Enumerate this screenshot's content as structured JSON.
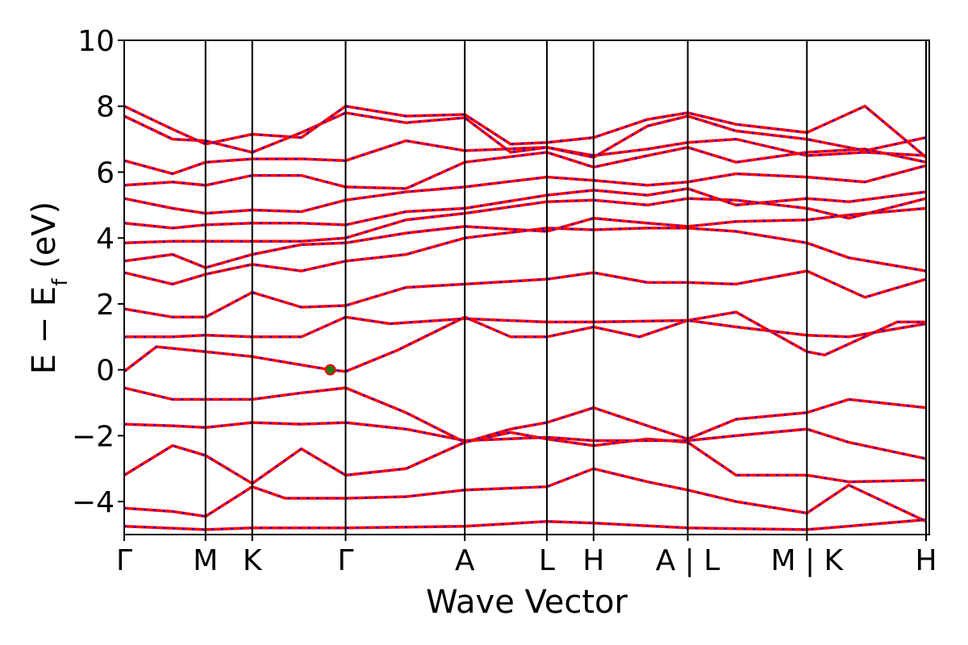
{
  "chart_data": {
    "type": "line",
    "xlabel": "Wave Vector",
    "ylabel": "E − E",
    "ylabel_sub": "f",
    "ylabel_unit": " (eV)",
    "ylim": [
      -5,
      10
    ],
    "yticks": [
      -4,
      -2,
      0,
      2,
      4,
      6,
      8,
      10
    ],
    "ytick_labels": [
      "−4",
      "−2",
      "0",
      "2",
      "4",
      "6",
      "8",
      "10"
    ],
    "x_range": [
      0,
      1000
    ],
    "kpoints": [
      {
        "label": "Γ",
        "x": 0
      },
      {
        "label": "M",
        "x": 101
      },
      {
        "label": "K",
        "x": 159
      },
      {
        "label": "Γ",
        "x": 275
      },
      {
        "label": "A",
        "x": 423
      },
      {
        "label": "L",
        "x": 525
      },
      {
        "label": "H",
        "x": 583
      },
      {
        "label": "A | L",
        "x": 700
      },
      {
        "label": "M | K",
        "x": 848
      },
      {
        "label": "H",
        "x": 996
      }
    ],
    "segment_breaks": [
      0,
      101,
      159,
      275,
      423,
      525,
      583,
      700,
      848,
      996
    ],
    "highlight_point": {
      "x": 256,
      "y": 0.0
    },
    "colors": {
      "band_line": "#ff0000",
      "band_dash": "#0000ff",
      "highlight": "#1a7f1a",
      "axis": "#000000"
    },
    "series": [
      {
        "values": [
          [
            0,
            -4.75
          ],
          [
            101,
            -4.85
          ],
          [
            159,
            -4.8
          ],
          [
            275,
            -4.8
          ],
          [
            423,
            -4.75
          ],
          [
            525,
            -4.6
          ],
          [
            583,
            -4.65
          ],
          [
            700,
            -4.8
          ],
          [
            848,
            -4.85
          ],
          [
            996,
            -4.55
          ]
        ]
      },
      {
        "values": [
          [
            0,
            -4.2
          ],
          [
            60,
            -4.3
          ],
          [
            101,
            -4.45
          ],
          [
            159,
            -3.55
          ],
          [
            200,
            -3.9
          ],
          [
            275,
            -3.9
          ],
          [
            350,
            -3.85
          ],
          [
            423,
            -3.65
          ],
          [
            525,
            -3.55
          ],
          [
            583,
            -3.0
          ],
          [
            650,
            -3.4
          ],
          [
            700,
            -3.65
          ],
          [
            760,
            -4.0
          ],
          [
            848,
            -4.35
          ],
          [
            900,
            -3.5
          ],
          [
            996,
            -4.6
          ]
        ]
      },
      {
        "values": [
          [
            0,
            -3.2
          ],
          [
            60,
            -2.3
          ],
          [
            101,
            -2.6
          ],
          [
            159,
            -3.45
          ],
          [
            220,
            -2.4
          ],
          [
            275,
            -3.2
          ],
          [
            350,
            -3.0
          ],
          [
            423,
            -2.2
          ],
          [
            480,
            -1.9
          ],
          [
            525,
            -2.1
          ],
          [
            583,
            -2.3
          ],
          [
            650,
            -2.1
          ],
          [
            700,
            -2.2
          ],
          [
            760,
            -3.2
          ],
          [
            848,
            -3.2
          ],
          [
            900,
            -3.4
          ],
          [
            996,
            -3.35
          ]
        ]
      },
      {
        "values": [
          [
            0,
            -1.65
          ],
          [
            60,
            -1.7
          ],
          [
            101,
            -1.75
          ],
          [
            159,
            -1.6
          ],
          [
            220,
            -1.65
          ],
          [
            275,
            -1.6
          ],
          [
            350,
            -1.8
          ],
          [
            423,
            -2.15
          ],
          [
            525,
            -2.05
          ],
          [
            583,
            -2.15
          ],
          [
            700,
            -2.15
          ],
          [
            760,
            -2.0
          ],
          [
            848,
            -1.8
          ],
          [
            900,
            -2.2
          ],
          [
            996,
            -2.7
          ]
        ]
      },
      {
        "values": [
          [
            0,
            -0.55
          ],
          [
            60,
            -0.9
          ],
          [
            101,
            -0.9
          ],
          [
            159,
            -0.9
          ],
          [
            220,
            -0.7
          ],
          [
            275,
            -0.55
          ],
          [
            350,
            -1.3
          ],
          [
            423,
            -2.2
          ],
          [
            480,
            -1.8
          ],
          [
            525,
            -1.6
          ],
          [
            583,
            -1.15
          ],
          [
            650,
            -1.7
          ],
          [
            700,
            -2.1
          ],
          [
            760,
            -1.5
          ],
          [
            848,
            -1.3
          ],
          [
            900,
            -0.9
          ],
          [
            996,
            -1.15
          ]
        ]
      },
      {
        "values": [
          [
            0,
            -0.05
          ],
          [
            40,
            0.7
          ],
          [
            101,
            0.55
          ],
          [
            159,
            0.4
          ],
          [
            256,
            0.0
          ],
          [
            275,
            -0.05
          ],
          [
            340,
            0.6
          ],
          [
            423,
            1.6
          ],
          [
            480,
            1.0
          ],
          [
            525,
            1.0
          ],
          [
            583,
            1.3
          ],
          [
            640,
            1.0
          ],
          [
            700,
            1.5
          ],
          [
            760,
            1.75
          ],
          [
            848,
            0.55
          ],
          [
            870,
            0.45
          ],
          [
            960,
            1.45
          ],
          [
            996,
            1.45
          ]
        ]
      },
      {
        "values": [
          [
            0,
            1.0
          ],
          [
            60,
            1.0
          ],
          [
            101,
            1.05
          ],
          [
            159,
            1.0
          ],
          [
            220,
            1.0
          ],
          [
            275,
            1.6
          ],
          [
            330,
            1.4
          ],
          [
            423,
            1.55
          ],
          [
            525,
            1.45
          ],
          [
            583,
            1.45
          ],
          [
            700,
            1.5
          ],
          [
            760,
            1.3
          ],
          [
            848,
            1.05
          ],
          [
            900,
            1.0
          ],
          [
            996,
            1.4
          ]
        ]
      },
      {
        "values": [
          [
            0,
            1.85
          ],
          [
            60,
            1.6
          ],
          [
            101,
            1.6
          ],
          [
            159,
            2.35
          ],
          [
            220,
            1.9
          ],
          [
            275,
            1.95
          ],
          [
            350,
            2.5
          ],
          [
            423,
            2.6
          ],
          [
            525,
            2.75
          ],
          [
            583,
            2.95
          ],
          [
            650,
            2.65
          ],
          [
            700,
            2.65
          ],
          [
            760,
            2.6
          ],
          [
            848,
            3.0
          ],
          [
            920,
            2.2
          ],
          [
            996,
            2.75
          ]
        ]
      },
      {
        "values": [
          [
            0,
            2.95
          ],
          [
            60,
            2.6
          ],
          [
            101,
            2.9
          ],
          [
            159,
            3.2
          ],
          [
            220,
            3.0
          ],
          [
            275,
            3.3
          ],
          [
            350,
            3.5
          ],
          [
            423,
            4.0
          ],
          [
            525,
            4.3
          ],
          [
            583,
            4.25
          ],
          [
            650,
            4.3
          ],
          [
            700,
            4.3
          ],
          [
            760,
            4.2
          ],
          [
            848,
            3.85
          ],
          [
            900,
            3.4
          ],
          [
            996,
            3.0
          ]
        ]
      },
      {
        "values": [
          [
            0,
            3.3
          ],
          [
            60,
            3.5
          ],
          [
            101,
            3.1
          ],
          [
            159,
            3.5
          ],
          [
            220,
            3.8
          ],
          [
            275,
            3.85
          ],
          [
            350,
            4.15
          ],
          [
            423,
            4.35
          ],
          [
            525,
            4.2
          ],
          [
            583,
            4.6
          ],
          [
            650,
            4.45
          ],
          [
            700,
            4.35
          ],
          [
            760,
            4.5
          ],
          [
            848,
            4.55
          ],
          [
            900,
            4.7
          ],
          [
            996,
            4.9
          ]
        ]
      },
      {
        "values": [
          [
            0,
            3.85
          ],
          [
            60,
            3.9
          ],
          [
            101,
            3.9
          ],
          [
            159,
            3.9
          ],
          [
            220,
            3.9
          ],
          [
            275,
            4.0
          ],
          [
            350,
            4.55
          ],
          [
            423,
            4.75
          ],
          [
            525,
            5.1
          ],
          [
            583,
            5.15
          ],
          [
            650,
            5.0
          ],
          [
            700,
            5.2
          ],
          [
            760,
            5.15
          ],
          [
            848,
            4.9
          ],
          [
            900,
            4.6
          ],
          [
            996,
            5.2
          ]
        ]
      },
      {
        "values": [
          [
            0,
            4.45
          ],
          [
            60,
            4.3
          ],
          [
            101,
            4.4
          ],
          [
            159,
            4.45
          ],
          [
            220,
            4.45
          ],
          [
            275,
            4.4
          ],
          [
            350,
            4.8
          ],
          [
            423,
            4.9
          ],
          [
            525,
            5.3
          ],
          [
            583,
            5.45
          ],
          [
            650,
            5.3
          ],
          [
            700,
            5.5
          ],
          [
            760,
            5.0
          ],
          [
            848,
            5.2
          ],
          [
            900,
            5.1
          ],
          [
            996,
            5.4
          ]
        ]
      },
      {
        "values": [
          [
            0,
            5.2
          ],
          [
            60,
            4.9
          ],
          [
            101,
            4.75
          ],
          [
            159,
            4.85
          ],
          [
            220,
            4.8
          ],
          [
            275,
            5.15
          ],
          [
            350,
            5.4
          ],
          [
            423,
            5.55
          ],
          [
            525,
            5.85
          ],
          [
            583,
            5.75
          ],
          [
            650,
            5.6
          ],
          [
            700,
            5.7
          ],
          [
            760,
            5.95
          ],
          [
            848,
            5.85
          ],
          [
            920,
            5.7
          ],
          [
            996,
            6.2
          ]
        ]
      },
      {
        "values": [
          [
            0,
            5.6
          ],
          [
            60,
            5.7
          ],
          [
            101,
            5.6
          ],
          [
            159,
            5.9
          ],
          [
            220,
            5.9
          ],
          [
            275,
            5.55
          ],
          [
            350,
            5.5
          ],
          [
            423,
            6.3
          ],
          [
            525,
            6.6
          ],
          [
            583,
            6.15
          ],
          [
            650,
            6.5
          ],
          [
            700,
            6.75
          ],
          [
            760,
            6.3
          ],
          [
            848,
            6.6
          ],
          [
            920,
            6.7
          ],
          [
            996,
            6.3
          ]
        ]
      },
      {
        "values": [
          [
            0,
            6.35
          ],
          [
            60,
            5.95
          ],
          [
            101,
            6.3
          ],
          [
            159,
            6.4
          ],
          [
            220,
            6.4
          ],
          [
            275,
            6.35
          ],
          [
            350,
            6.95
          ],
          [
            423,
            6.65
          ],
          [
            525,
            6.75
          ],
          [
            583,
            6.5
          ],
          [
            650,
            6.7
          ],
          [
            700,
            6.9
          ],
          [
            760,
            7.0
          ],
          [
            848,
            6.5
          ],
          [
            920,
            6.6
          ],
          [
            996,
            6.5
          ]
        ]
      },
      {
        "values": [
          [
            0,
            7.7
          ],
          [
            60,
            7.0
          ],
          [
            101,
            6.95
          ],
          [
            159,
            6.6
          ],
          [
            220,
            7.2
          ],
          [
            275,
            7.8
          ],
          [
            350,
            7.5
          ],
          [
            423,
            7.65
          ],
          [
            480,
            6.6
          ],
          [
            525,
            6.75
          ],
          [
            583,
            6.45
          ],
          [
            650,
            7.4
          ],
          [
            700,
            7.7
          ],
          [
            760,
            7.25
          ],
          [
            848,
            7.0
          ],
          [
            920,
            6.65
          ],
          [
            996,
            7.05
          ]
        ]
      },
      {
        "values": [
          [
            0,
            8.0
          ],
          [
            60,
            7.3
          ],
          [
            101,
            6.85
          ],
          [
            159,
            7.15
          ],
          [
            220,
            7.05
          ],
          [
            275,
            8.0
          ],
          [
            350,
            7.7
          ],
          [
            423,
            7.75
          ],
          [
            480,
            6.85
          ],
          [
            525,
            6.9
          ],
          [
            583,
            7.05
          ],
          [
            650,
            7.6
          ],
          [
            700,
            7.8
          ],
          [
            760,
            7.45
          ],
          [
            848,
            7.2
          ],
          [
            920,
            8.0
          ],
          [
            996,
            6.45
          ]
        ]
      }
    ]
  }
}
